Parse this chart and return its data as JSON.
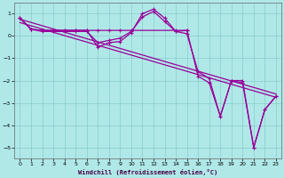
{
  "title": "Windchill (Refroidissement éolien,°C)",
  "bg_color": "#b0e8e8",
  "line_color": "#990099",
  "marker_color": "#990099",
  "xlim": [
    -0.5,
    23.5
  ],
  "ylim": [
    -5.5,
    1.5
  ],
  "xticks": [
    0,
    1,
    2,
    3,
    4,
    5,
    6,
    7,
    8,
    9,
    10,
    11,
    12,
    13,
    14,
    15,
    16,
    17,
    18,
    19,
    20,
    21,
    22,
    23
  ],
  "yticks": [
    -5,
    -4,
    -3,
    -2,
    -1,
    0,
    1
  ],
  "grid_color": "#88cccc",
  "series_main_x": [
    0,
    1,
    2,
    3,
    4,
    5,
    6,
    7,
    8,
    9,
    10,
    11,
    12,
    13,
    14,
    15,
    16,
    17,
    18,
    19,
    20,
    21,
    22,
    23
  ],
  "series_main_y": [
    0.8,
    0.3,
    0.25,
    0.25,
    0.25,
    0.25,
    0.25,
    -0.5,
    -0.3,
    -0.25,
    0.15,
    1.0,
    1.2,
    0.8,
    0.2,
    0.25,
    -1.8,
    -2.1,
    -3.6,
    -2.0,
    -2.1,
    -5.0,
    -3.3,
    -2.7
  ],
  "series_flat_x": [
    0,
    1,
    2,
    3,
    4,
    5,
    6,
    7,
    8,
    9,
    10,
    14,
    15
  ],
  "series_flat_y": [
    0.8,
    0.3,
    0.25,
    0.25,
    0.25,
    0.25,
    0.25,
    0.25,
    0.25,
    0.25,
    0.25,
    0.25,
    0.25
  ],
  "trend1_x": [
    0,
    23
  ],
  "trend1_y": [
    0.75,
    -2.6
  ],
  "trend2_x": [
    0,
    23
  ],
  "trend2_y": [
    0.6,
    -2.75
  ],
  "series2_x": [
    0,
    1,
    2,
    3,
    4,
    5,
    6,
    7,
    8,
    9,
    10,
    11,
    12,
    13,
    14,
    15,
    16,
    17,
    18,
    19,
    20,
    21,
    22,
    23
  ],
  "series2_y": [
    0.8,
    0.3,
    0.2,
    0.2,
    0.2,
    0.2,
    0.2,
    -0.3,
    -0.2,
    -0.1,
    0.2,
    0.85,
    1.1,
    0.65,
    0.2,
    0.1,
    -1.6,
    -1.9,
    -3.6,
    -2.0,
    -2.0,
    -5.0,
    -3.3,
    -2.7
  ]
}
